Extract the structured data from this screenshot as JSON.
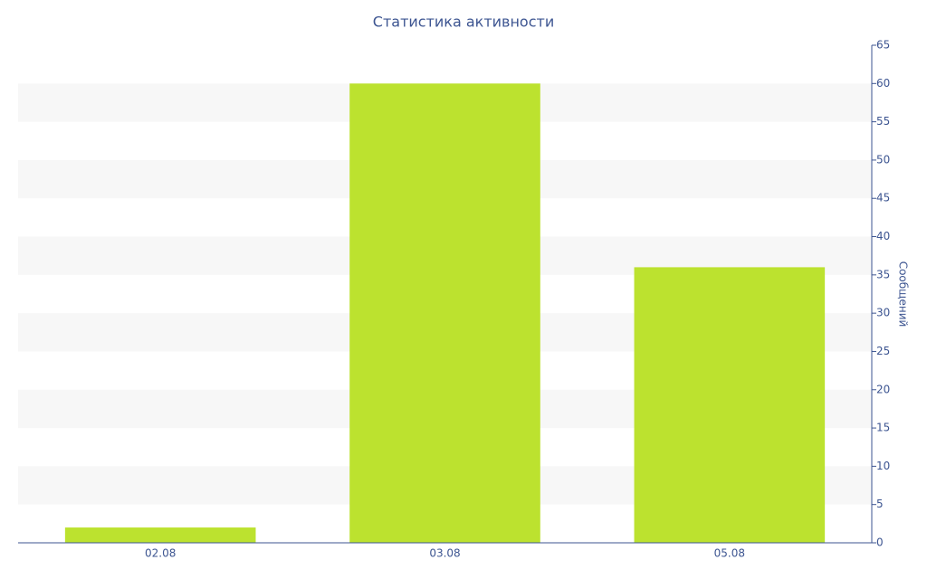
{
  "chart_data": {
    "type": "bar",
    "title": "Статистика активности",
    "y_axis_label": "Сообщений",
    "categories": [
      "02.08",
      "03.08",
      "05.08"
    ],
    "values": [
      2,
      60,
      36
    ],
    "color": "#bce22f",
    "ylim": [
      0,
      65
    ],
    "yticks": [
      0,
      5,
      10,
      15,
      20,
      25,
      30,
      35,
      40,
      45,
      50,
      55,
      60,
      65
    ],
    "y_axis_side": "right",
    "grid_bands": true
  }
}
